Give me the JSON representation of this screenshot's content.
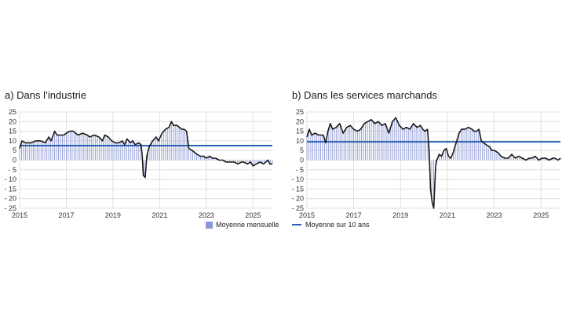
{
  "panels": {
    "a": {
      "title": "a)  Dans l’industrie"
    },
    "b": {
      "title": "b)  Dans les services marchands"
    }
  },
  "legend": {
    "bars": "Moyenne mensuelle",
    "line": "Moyenne sur 10 ans"
  },
  "colors": {
    "bars": "#8c98d6",
    "line": "#1a1a1a",
    "average": "#2a62b5",
    "grid": "#d9d9d9"
  },
  "chart_data": [
    {
      "type": "bar",
      "title": "a)  Dans l’industrie",
      "xlim": [
        2015,
        2025.83
      ],
      "ylim": [
        -25,
        25
      ],
      "xticks": [
        "2015",
        "2017",
        "2019",
        "2021",
        "2023",
        "2025"
      ],
      "yticks": [
        "25",
        "20",
        "15",
        "10",
        "5",
        "0",
        "- 5",
        "- 10",
        "- 15",
        "- 20",
        "- 25"
      ],
      "grid": true,
      "ten_year_average": 7.5,
      "series": [
        {
          "name": "Moyenne mensuelle",
          "points": [
            [
              2015,
              6
            ],
            [
              2015.1,
              10
            ],
            [
              2015.25,
              9
            ],
            [
              2015.5,
              9
            ],
            [
              2015.7,
              10
            ],
            [
              2015.9,
              10
            ],
            [
              2016.1,
              9
            ],
            [
              2016.25,
              12
            ],
            [
              2016.35,
              10
            ],
            [
              2016.5,
              15
            ],
            [
              2016.6,
              13
            ],
            [
              2016.75,
              13
            ],
            [
              2016.9,
              13
            ],
            [
              2017.0,
              14
            ],
            [
              2017.15,
              15
            ],
            [
              2017.3,
              15
            ],
            [
              2017.5,
              13
            ],
            [
              2017.7,
              14
            ],
            [
              2017.9,
              13
            ],
            [
              2018.0,
              12
            ],
            [
              2018.2,
              13
            ],
            [
              2018.4,
              12
            ],
            [
              2018.55,
              10
            ],
            [
              2018.65,
              13
            ],
            [
              2018.8,
              12
            ],
            [
              2018.95,
              10
            ],
            [
              2019.1,
              9
            ],
            [
              2019.25,
              9
            ],
            [
              2019.4,
              10
            ],
            [
              2019.5,
              8
            ],
            [
              2019.6,
              11
            ],
            [
              2019.75,
              9
            ],
            [
              2019.85,
              10
            ],
            [
              2019.95,
              8
            ],
            [
              2020.1,
              9
            ],
            [
              2020.2,
              8
            ],
            [
              2020.25,
              3
            ],
            [
              2020.3,
              -8
            ],
            [
              2020.38,
              -9
            ],
            [
              2020.45,
              2
            ],
            [
              2020.55,
              7
            ],
            [
              2020.7,
              10
            ],
            [
              2020.85,
              12
            ],
            [
              2020.95,
              10
            ],
            [
              2021.1,
              14
            ],
            [
              2021.25,
              16
            ],
            [
              2021.4,
              17
            ],
            [
              2021.5,
              20
            ],
            [
              2021.6,
              18
            ],
            [
              2021.75,
              18
            ],
            [
              2021.85,
              17
            ],
            [
              2021.95,
              16
            ],
            [
              2022.05,
              16
            ],
            [
              2022.15,
              15
            ],
            [
              2022.25,
              6
            ],
            [
              2022.4,
              5
            ],
            [
              2022.5,
              4
            ],
            [
              2022.6,
              3
            ],
            [
              2022.75,
              2
            ],
            [
              2022.9,
              2
            ],
            [
              2023.0,
              1
            ],
            [
              2023.15,
              2
            ],
            [
              2023.25,
              1
            ],
            [
              2023.4,
              1
            ],
            [
              2023.55,
              0
            ],
            [
              2023.7,
              0
            ],
            [
              2023.85,
              -1
            ],
            [
              2024.0,
              -1
            ],
            [
              2024.2,
              -1
            ],
            [
              2024.35,
              -2
            ],
            [
              2024.5,
              -1
            ],
            [
              2024.6,
              -1
            ],
            [
              2024.75,
              -2
            ],
            [
              2024.9,
              -1
            ],
            [
              2025.0,
              -3
            ],
            [
              2025.15,
              -2
            ],
            [
              2025.3,
              -1
            ],
            [
              2025.45,
              -2
            ],
            [
              2025.55,
              -1
            ],
            [
              2025.65,
              0
            ],
            [
              2025.72,
              -2
            ],
            [
              2025.83,
              -2
            ]
          ]
        }
      ]
    },
    {
      "type": "bar",
      "title": "b)  Dans les services marchands",
      "xlim": [
        2015,
        2025.83
      ],
      "ylim": [
        -25,
        25
      ],
      "xticks": [
        "2015",
        "2017",
        "2019",
        "2021",
        "2023",
        "2025"
      ],
      "yticks": [
        "25",
        "20",
        "15",
        "10",
        "5",
        "0",
        "- 5",
        "- 10",
        "- 15",
        "- 20",
        "- 25"
      ],
      "grid": true,
      "ten_year_average": 9.5,
      "series": [
        {
          "name": "Moyenne mensuelle",
          "points": [
            [
              2015,
              12
            ],
            [
              2015.1,
              16
            ],
            [
              2015.2,
              13
            ],
            [
              2015.35,
              14
            ],
            [
              2015.5,
              13
            ],
            [
              2015.7,
              13
            ],
            [
              2015.8,
              9
            ],
            [
              2015.9,
              15
            ],
            [
              2016.0,
              19
            ],
            [
              2016.1,
              16
            ],
            [
              2016.25,
              17
            ],
            [
              2016.4,
              19
            ],
            [
              2016.55,
              14
            ],
            [
              2016.7,
              17
            ],
            [
              2016.85,
              18
            ],
            [
              2017.0,
              16
            ],
            [
              2017.15,
              15
            ],
            [
              2017.3,
              16
            ],
            [
              2017.45,
              19
            ],
            [
              2017.6,
              20
            ],
            [
              2017.75,
              21
            ],
            [
              2017.9,
              19
            ],
            [
              2018.05,
              20
            ],
            [
              2018.2,
              18
            ],
            [
              2018.35,
              19
            ],
            [
              2018.5,
              14
            ],
            [
              2018.65,
              20
            ],
            [
              2018.8,
              22
            ],
            [
              2018.95,
              18
            ],
            [
              2019.1,
              16
            ],
            [
              2019.25,
              17
            ],
            [
              2019.4,
              16
            ],
            [
              2019.55,
              19
            ],
            [
              2019.7,
              17
            ],
            [
              2019.85,
              18
            ],
            [
              2019.95,
              16
            ],
            [
              2020.05,
              15
            ],
            [
              2020.15,
              16
            ],
            [
              2020.22,
              5
            ],
            [
              2020.28,
              -15
            ],
            [
              2020.35,
              -22
            ],
            [
              2020.42,
              -25
            ],
            [
              2020.5,
              -3
            ],
            [
              2020.55,
              0
            ],
            [
              2020.65,
              3
            ],
            [
              2020.75,
              2
            ],
            [
              2020.85,
              5
            ],
            [
              2020.95,
              6
            ],
            [
              2021.05,
              2
            ],
            [
              2021.15,
              1
            ],
            [
              2021.25,
              4
            ],
            [
              2021.4,
              10
            ],
            [
              2021.5,
              14
            ],
            [
              2021.6,
              16
            ],
            [
              2021.75,
              16
            ],
            [
              2021.9,
              17
            ],
            [
              2022.05,
              16
            ],
            [
              2022.15,
              15
            ],
            [
              2022.25,
              15
            ],
            [
              2022.35,
              16
            ],
            [
              2022.45,
              10
            ],
            [
              2022.55,
              9
            ],
            [
              2022.65,
              8
            ],
            [
              2022.8,
              7
            ],
            [
              2022.9,
              5
            ],
            [
              2023.0,
              5
            ],
            [
              2023.15,
              4
            ],
            [
              2023.3,
              2
            ],
            [
              2023.45,
              1
            ],
            [
              2023.6,
              1
            ],
            [
              2023.75,
              3
            ],
            [
              2023.9,
              1
            ],
            [
              2024.05,
              2
            ],
            [
              2024.2,
              1
            ],
            [
              2024.35,
              0
            ],
            [
              2024.5,
              1
            ],
            [
              2024.6,
              1
            ],
            [
              2024.75,
              2
            ],
            [
              2024.9,
              0
            ],
            [
              2025.05,
              1
            ],
            [
              2025.2,
              1
            ],
            [
              2025.35,
              0
            ],
            [
              2025.5,
              1
            ],
            [
              2025.6,
              1
            ],
            [
              2025.72,
              0
            ],
            [
              2025.83,
              1
            ]
          ]
        }
      ]
    }
  ]
}
